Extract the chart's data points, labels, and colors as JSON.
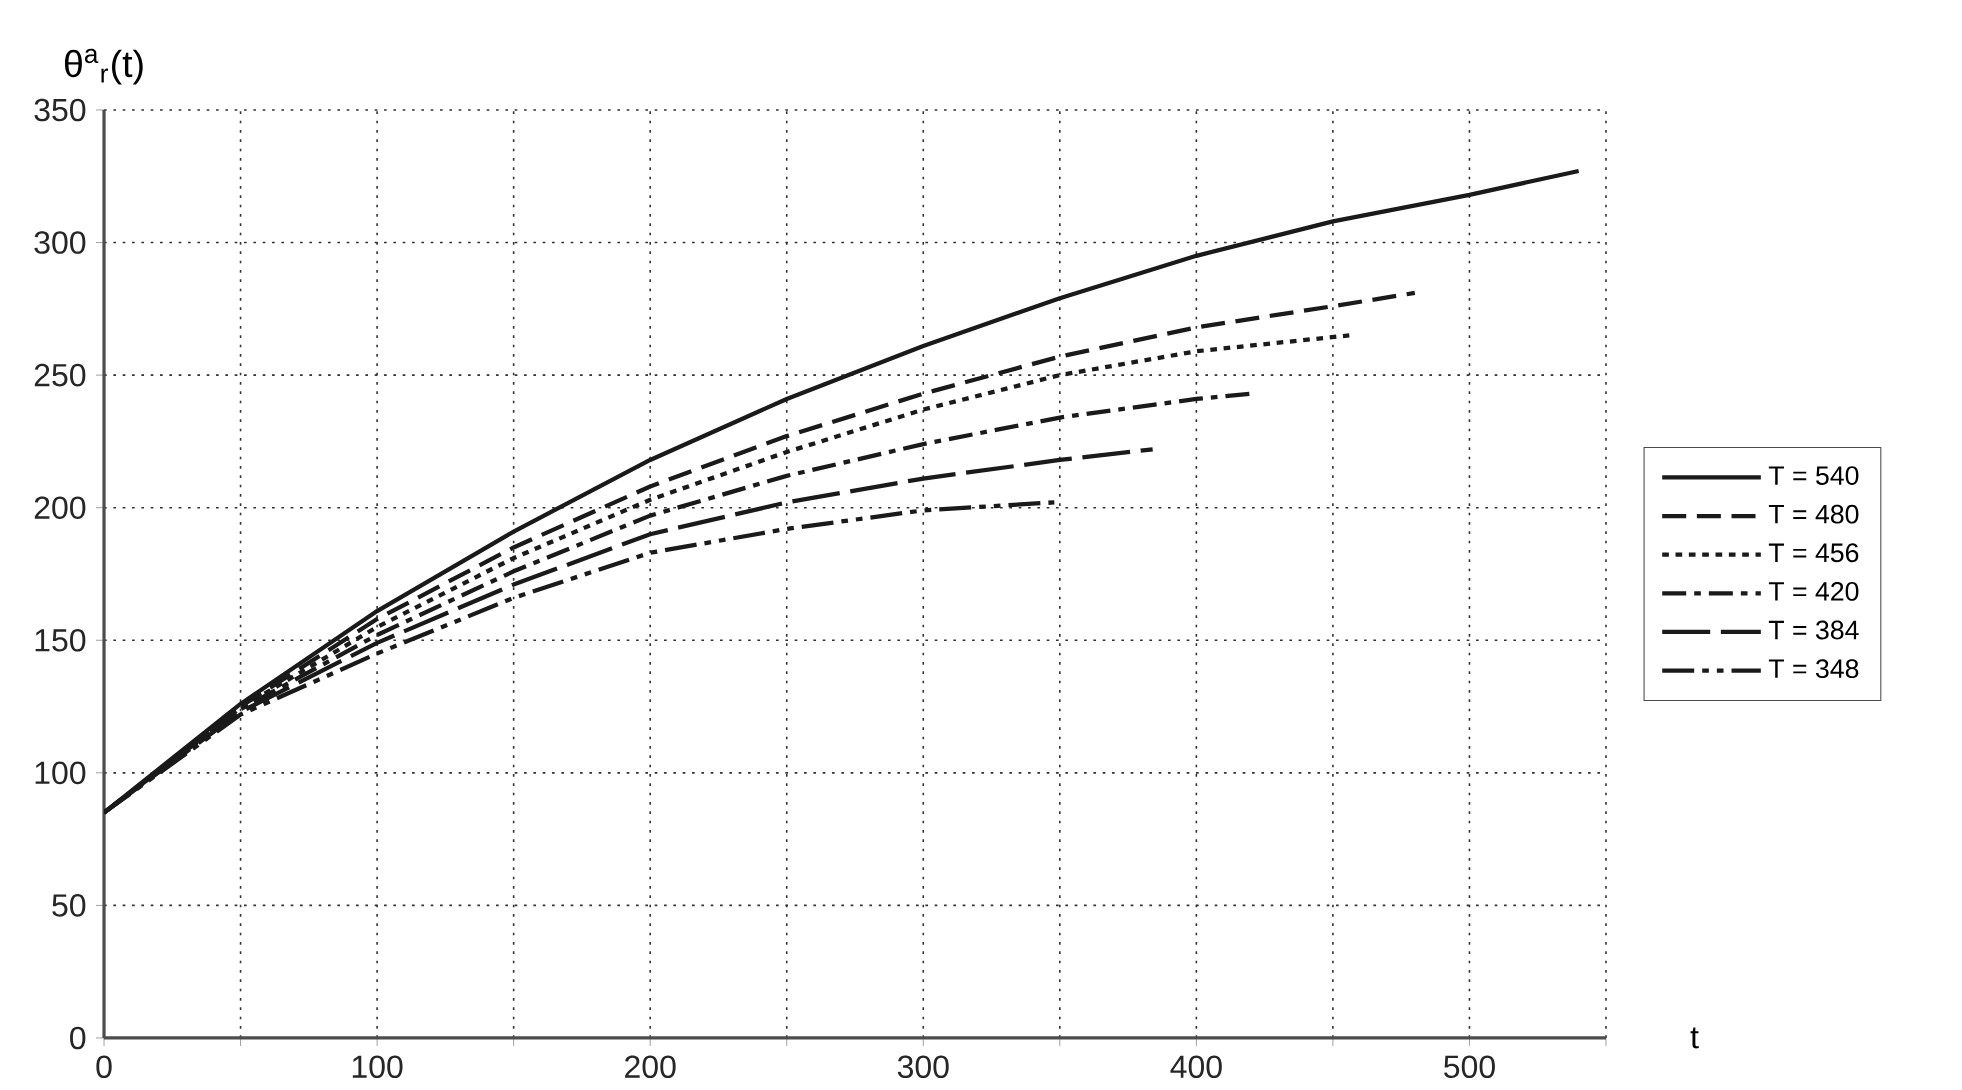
{
  "chart_data": {
    "type": "line",
    "xlabel": "t",
    "ylabel": "θ$^{a}$$_{r}$(t)",
    "xlim": [
      0,
      550
    ],
    "ylim": [
      0,
      350
    ],
    "xticks": [
      0,
      {
        "value": 50,
        "label": null
      },
      100,
      {
        "value": 150,
        "label": null
      },
      200,
      {
        "value": 250,
        "label": null
      },
      300,
      {
        "value": 350,
        "label": null
      },
      400,
      {
        "value": 450,
        "label": null
      },
      500,
      {
        "value": 550,
        "label": null
      }
    ],
    "yticks": [
      0,
      50,
      100,
      150,
      200,
      250,
      300,
      350
    ],
    "grid": true,
    "legend": "right",
    "marker": "none",
    "series": [
      {
        "name": "T = 540",
        "color": "#1a1a1a",
        "line_style": "solid",
        "x": [
          0,
          50,
          100,
          150,
          200,
          250,
          300,
          350,
          400,
          450,
          500,
          540
        ],
        "values": [
          85,
          126,
          161,
          191,
          218,
          241,
          261,
          279,
          295,
          308,
          318,
          327
        ]
      },
      {
        "name": "T = 480",
        "color": "#1a1a1a",
        "line_style": "dashed",
        "x": [
          0,
          50,
          100,
          150,
          200,
          250,
          300,
          350,
          400,
          450,
          480
        ],
        "values": [
          85,
          125,
          158,
          185,
          208,
          227,
          243,
          257,
          268,
          276,
          281
        ]
      },
      {
        "name": "T = 456",
        "color": "#1a1a1a",
        "line_style": "dotted",
        "x": [
          0,
          50,
          100,
          150,
          200,
          250,
          300,
          350,
          400,
          456
        ],
        "values": [
          85,
          124.5,
          155,
          181,
          203,
          221,
          237,
          250,
          259,
          265
        ]
      },
      {
        "name": "T = 420",
        "color": "#1a1a1a",
        "line_style": "dashdot",
        "x": [
          0,
          50,
          100,
          150,
          200,
          250,
          300,
          350,
          400,
          420
        ],
        "values": [
          85,
          124,
          152,
          176,
          197,
          212,
          224,
          234,
          241,
          243
        ]
      },
      {
        "name": "T = 384",
        "color": "#1a1a1a",
        "line_style": "longdash",
        "x": [
          0,
          50,
          100,
          150,
          200,
          250,
          300,
          350,
          384
        ],
        "values": [
          85,
          123,
          149,
          171,
          190,
          202,
          211,
          218,
          222
        ]
      },
      {
        "name": "T = 348",
        "color": "#1a1a1a",
        "line_style": "dashdotdot",
        "x": [
          0,
          50,
          100,
          150,
          200,
          250,
          300,
          348
        ],
        "values": [
          85,
          122,
          145,
          166,
          183,
          192,
          199,
          202
        ]
      }
    ]
  }
}
